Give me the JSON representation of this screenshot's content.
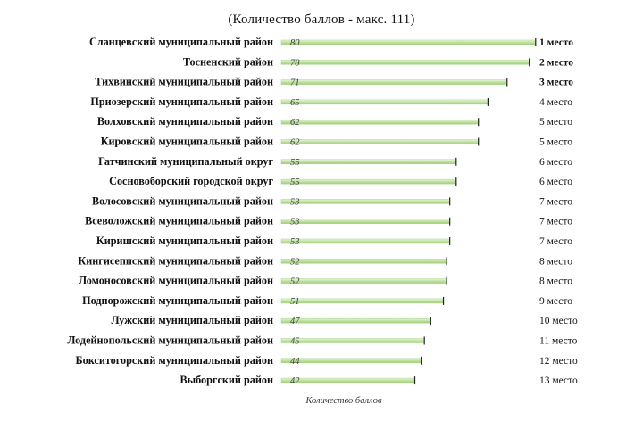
{
  "chart_data": {
    "type": "bar",
    "orientation": "horizontal",
    "title": "(Количество баллов - макс. 111)",
    "xlabel": "Количество баллов",
    "xlim": [
      0,
      111
    ],
    "grid": false,
    "bar_color": "#b8dc98",
    "categories": [
      "Сланцевский муниципальный район",
      "Тосненский район",
      "Тихвинский муниципальный район",
      "Приозерский муниципальный район",
      "Волховский муниципальный район",
      "Кировский муниципальный район",
      "Гатчинский муниципальный округ",
      "Сосновоборский городской округ",
      "Волосовский муниципальный район",
      "Всеволожский муниципальный район",
      "Киришский муниципальный район",
      "Кингисеппский муниципальный район",
      "Ломоносовский муниципальный район",
      "Подпорожский муниципальный район",
      "Лужский муниципальный район",
      "Лодейнопольский муниципальный район",
      "Бокситогорский муниципальный район",
      "Выборгский район"
    ],
    "values": [
      80,
      78,
      71,
      65,
      62,
      62,
      55,
      55,
      53,
      53,
      53,
      52,
      52,
      51,
      47,
      45,
      44,
      42
    ],
    "ranks": [
      "1 место",
      "2 место",
      "3 место",
      "4 место",
      "5 место",
      "5 место",
      "6 место",
      "6 место",
      "7 место",
      "7 место",
      "7 место",
      "8 место",
      "8 место",
      "9 место",
      "10 место",
      "11 место",
      "12 место",
      "13 место"
    ],
    "bold_ranks": [
      true,
      true,
      true,
      false,
      false,
      false,
      false,
      false,
      false,
      false,
      false,
      false,
      false,
      false,
      false,
      false,
      false,
      false
    ]
  }
}
